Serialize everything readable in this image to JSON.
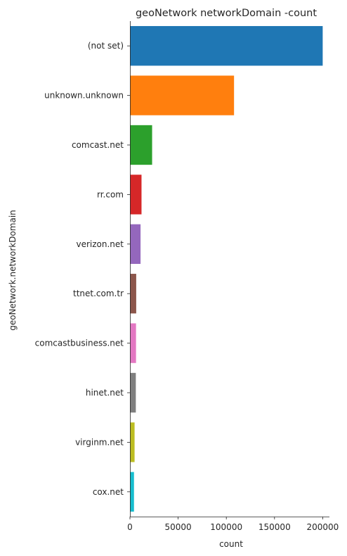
{
  "chart_data": {
    "type": "bar",
    "orientation": "horizontal",
    "title": "geoNetwork networkDomain -count",
    "xlabel": "count",
    "ylabel": "geoNetwork.networkDomain",
    "xlim": [
      0,
      207000
    ],
    "xticks": [
      0,
      50000,
      100000,
      150000,
      200000
    ],
    "xtick_labels": [
      "0",
      "50000",
      "100000",
      "150000",
      "200000"
    ],
    "grid": false,
    "categories": [
      "(not set)",
      "unknown.unknown",
      "comcast.net",
      "rr.com",
      "verizon.net",
      "ttnet.com.tr",
      "comcastbusiness.net",
      "hinet.net",
      "virginm.net",
      "cox.net"
    ],
    "values": [
      200000,
      108000,
      23000,
      12000,
      11000,
      6500,
      6300,
      6100,
      4800,
      4200
    ],
    "colors": [
      "#1f77b4",
      "#ff7f0e",
      "#2ca02c",
      "#d62728",
      "#9467bd",
      "#8c564b",
      "#e377c2",
      "#7f7f7f",
      "#bcbd22",
      "#17becf"
    ]
  }
}
